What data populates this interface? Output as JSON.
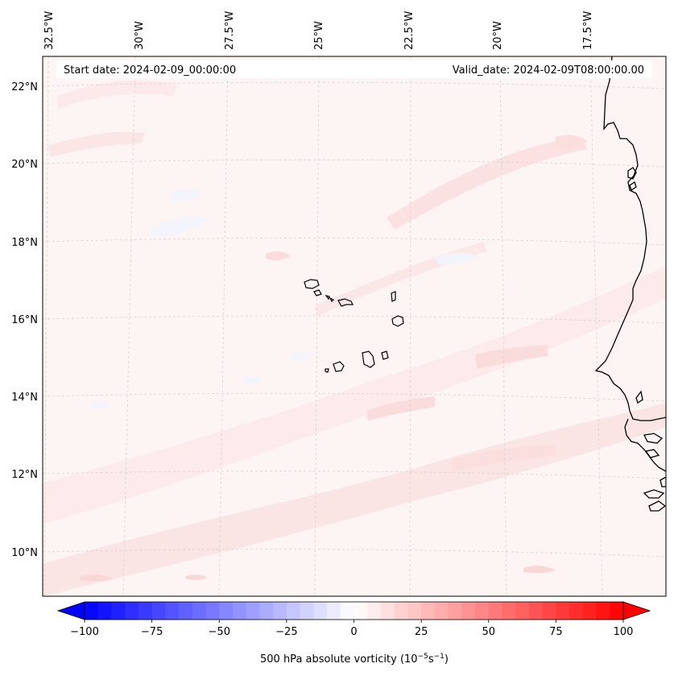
{
  "header": {
    "start_date": "Start date: 2024-02-09_00:00:00",
    "valid_date": "Valid_date: 2024-02-09T08:00:00.00"
  },
  "longitude_labels": [
    "32.5°W",
    "30°W",
    "27.5°W",
    "25°W",
    "22.5°W",
    "20°W",
    "17.5°W"
  ],
  "latitude_labels": [
    "22°N",
    "20°N",
    "18°N",
    "16°N",
    "14°N",
    "12°N",
    "10°N"
  ],
  "colorbar": {
    "min": -100,
    "max": 100,
    "tick_labels": [
      "−100",
      "−75",
      "−50",
      "−25",
      "0",
      "25",
      "50",
      "75",
      "100"
    ],
    "label": "500 hPa absolute vorticity (10",
    "label_exp1": "−5",
    "label_mid": "s",
    "label_exp2": "−1",
    "label_end": ")",
    "negative_color": "#0000ff",
    "positive_color": "#ff0000",
    "neutral_color": "#ffffff"
  },
  "colors": {
    "field_background": "#fdf5f5",
    "coastline": "#000000",
    "gridline": "#c8c8c8"
  }
}
